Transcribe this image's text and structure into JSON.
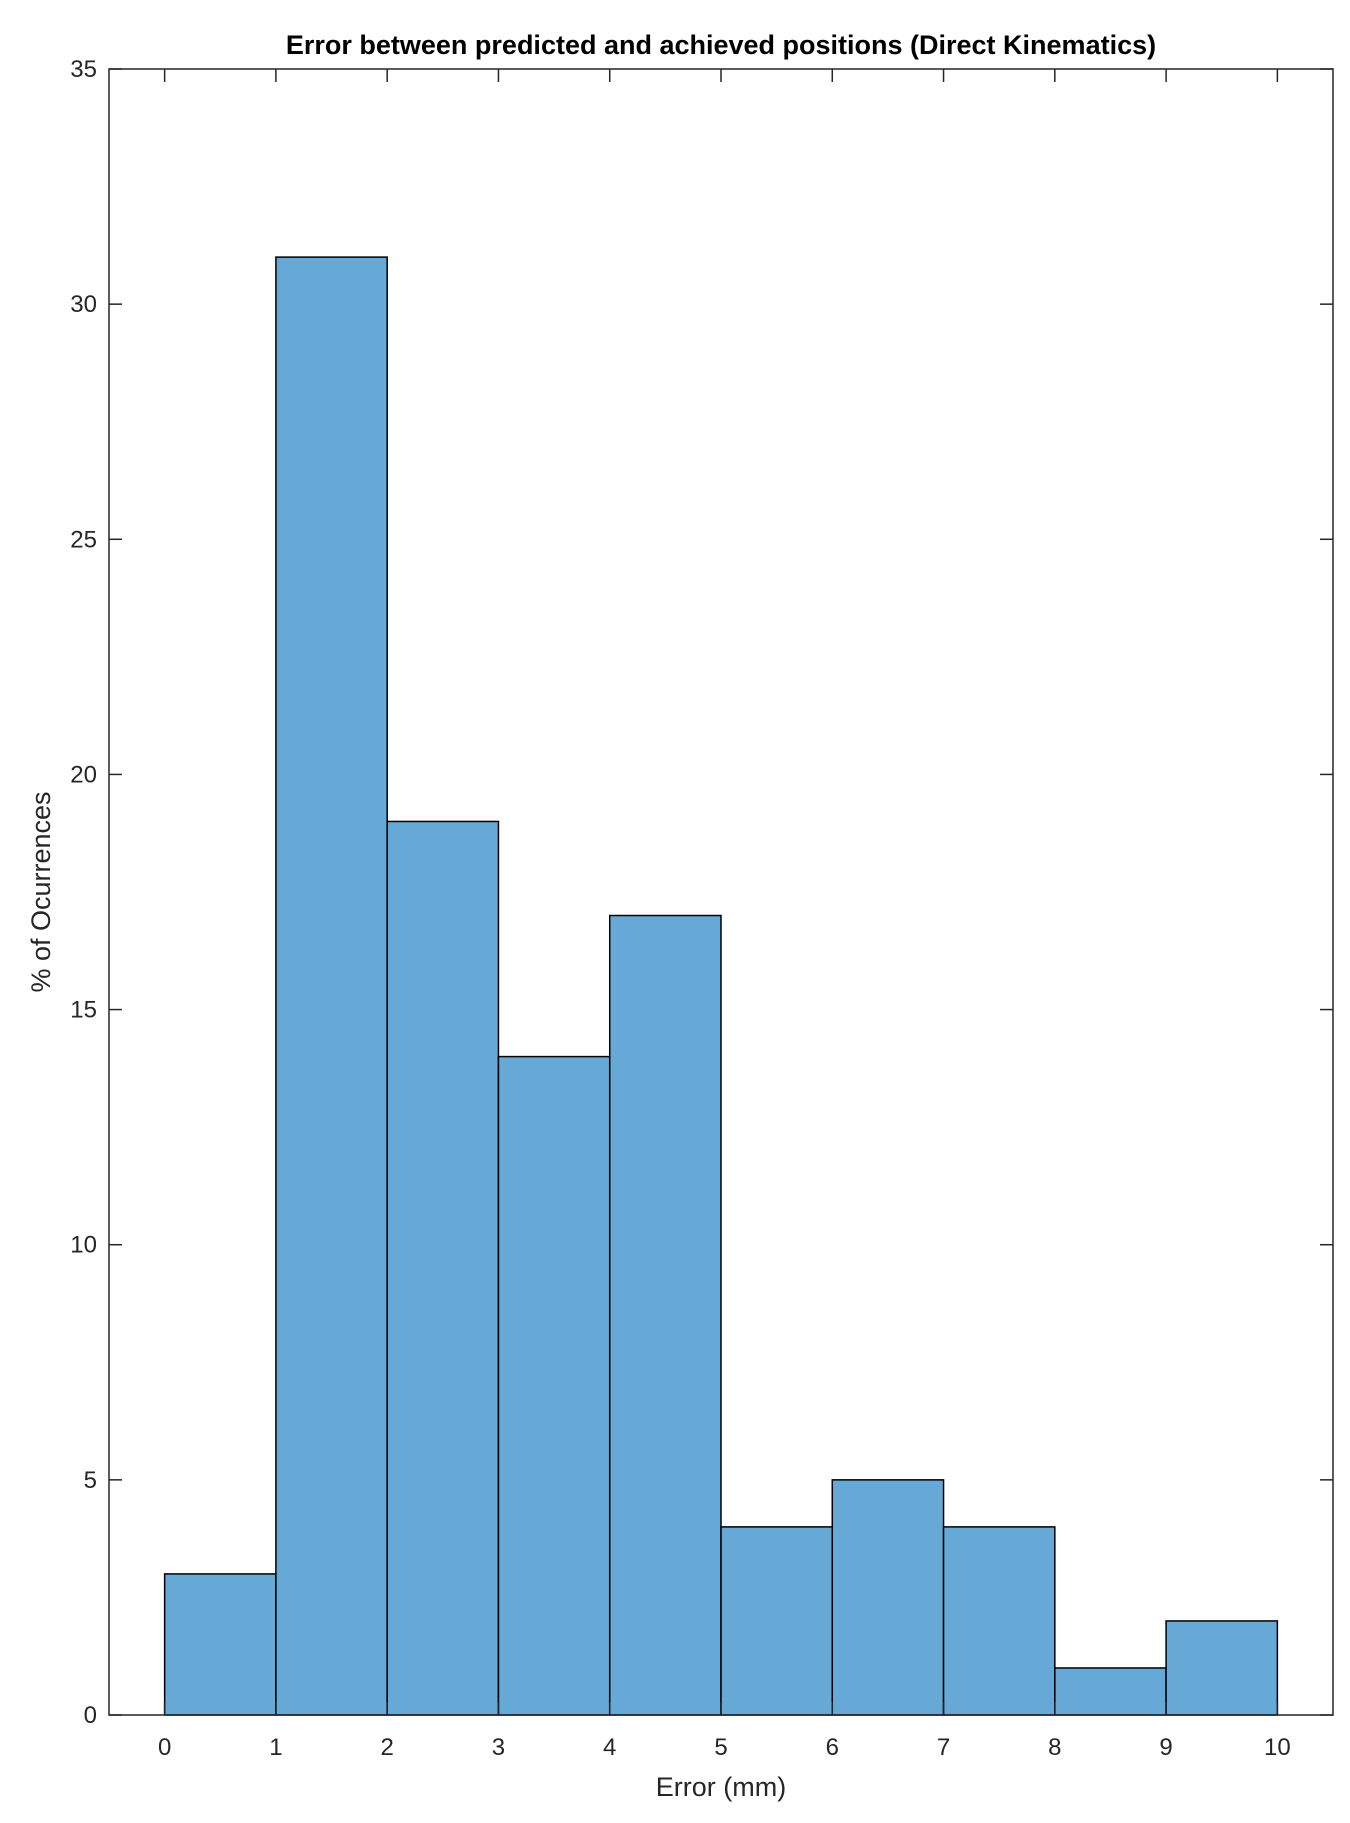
{
  "chart_data": {
    "type": "bar",
    "title": "Error between predicted and achieved positions (Direct Kinematics)",
    "xlabel": "Error (mm)",
    "ylabel": "% of Ocurrences",
    "bin_edges": [
      0,
      1,
      2,
      3,
      4,
      5,
      6,
      7,
      8,
      9,
      10
    ],
    "values": [
      3,
      31,
      19,
      14,
      17,
      4,
      5,
      4,
      1,
      2
    ],
    "xlim": [
      -0.5,
      10.5
    ],
    "ylim": [
      0,
      35
    ],
    "xticks": [
      "0",
      "1",
      "2",
      "3",
      "4",
      "5",
      "6",
      "7",
      "8",
      "9",
      "10"
    ],
    "yticks": [
      "0",
      "5",
      "10",
      "15",
      "20",
      "25",
      "30",
      "35"
    ],
    "grid": false,
    "bar_color": "#66a9d6",
    "edge_color": "#000000"
  }
}
